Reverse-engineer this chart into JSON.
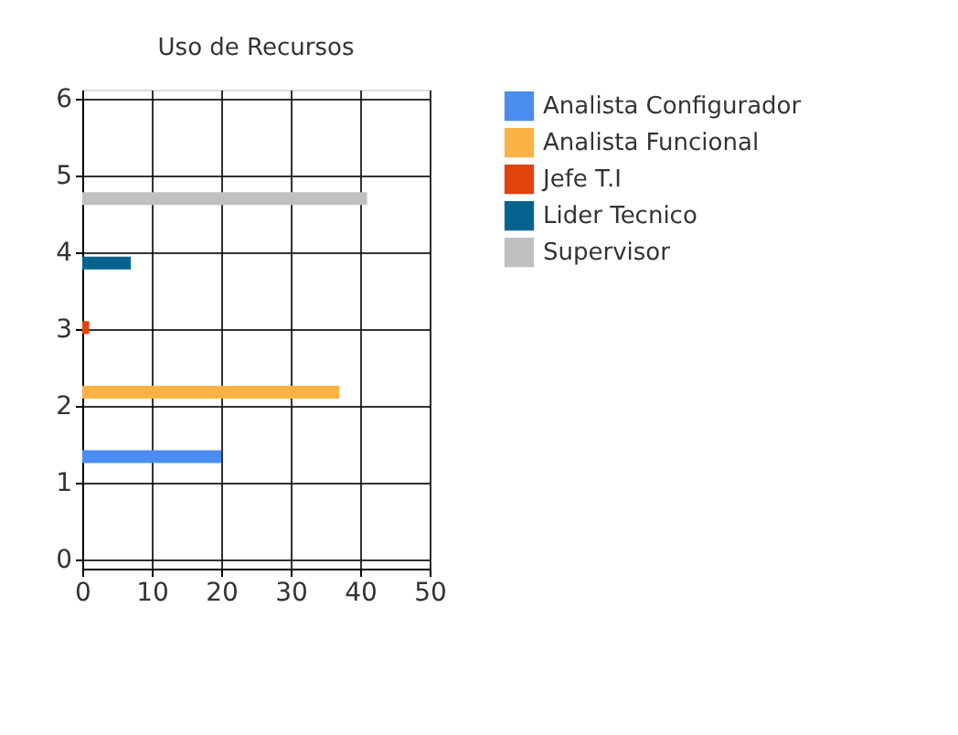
{
  "chart_data": {
    "type": "bar",
    "orientation": "horizontal",
    "title": "Uso de Recursos",
    "series": [
      {
        "name": "Analista Configurador",
        "color": "#4a8cf0",
        "x": [
          1.34
        ],
        "values": [
          20
        ]
      },
      {
        "name": "Analista Funcional",
        "color": "#fbb244",
        "x": [
          2.18
        ],
        "values": [
          37
        ]
      },
      {
        "name": "Jefe T.I",
        "color": "#e2420c",
        "x": [
          3.02
        ],
        "values": [
          1
        ]
      },
      {
        "name": "Lider Tecnico",
        "color": "#05648e",
        "x": [
          3.86
        ],
        "values": [
          7
        ]
      },
      {
        "name": "Supervisor",
        "color": "#c0c0c0",
        "x": [
          4.7
        ],
        "values": [
          41
        ]
      }
    ],
    "xlim": [
      0,
      50
    ],
    "xticks": [
      0,
      10,
      20,
      30,
      40,
      50
    ],
    "ylim": [
      0,
      6
    ],
    "yticks": [
      0,
      1,
      2,
      3,
      4,
      5,
      6
    ],
    "grid": true,
    "legend": "top right"
  }
}
